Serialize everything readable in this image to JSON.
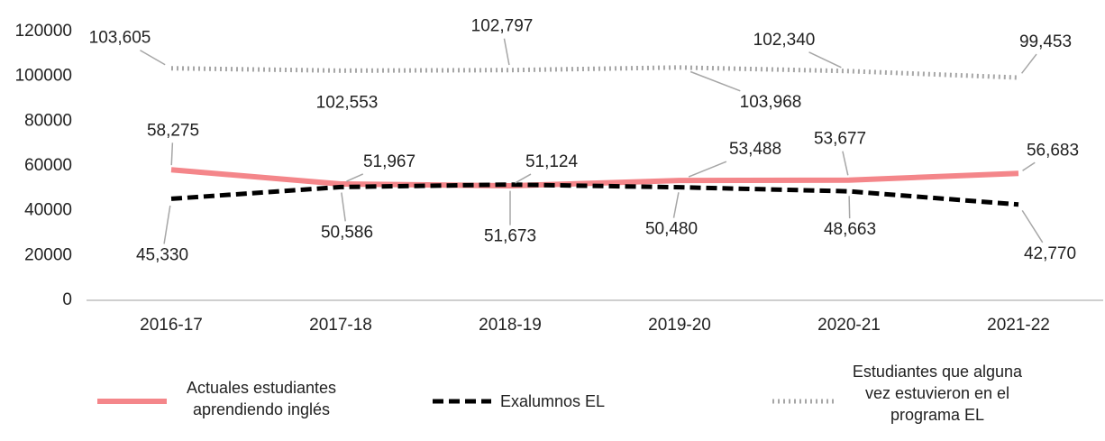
{
  "chart_data": {
    "type": "line",
    "categories": [
      "2016-17",
      "2017-18",
      "2018-19",
      "2019-20",
      "2020-21",
      "2021-22"
    ],
    "series": [
      {
        "name": "Actuales estudiantes aprendiendo inglés",
        "color": "#f4868a",
        "style": "solid",
        "values": [
          58275,
          51967,
          51124,
          53488,
          53677,
          56683
        ],
        "value_labels": [
          "58,275",
          "51,967",
          "51,124",
          "53,488",
          "53,677",
          "56,683"
        ]
      },
      {
        "name": "Exalumnos EL",
        "color": "#000000",
        "style": "dashed",
        "values": [
          45330,
          50586,
          51673,
          50480,
          48663,
          42770
        ],
        "value_labels": [
          "45,330",
          "50,586",
          "51,673",
          "50,480",
          "48,663",
          "42,770"
        ]
      },
      {
        "name": "Estudiantes que alguna vez estuvieron en el programa EL",
        "color": "#a6a6a6",
        "style": "dotted",
        "values": [
          103605,
          102553,
          102797,
          103968,
          102340,
          99453
        ],
        "value_labels": [
          "103,605",
          "102,553",
          "102,797",
          "103,968",
          "102,340",
          "99,453"
        ]
      }
    ],
    "ylim": [
      0,
      120000
    ],
    "yticks": [
      0,
      20000,
      40000,
      60000,
      80000,
      100000,
      120000
    ],
    "grid": false,
    "legend": "bottom"
  }
}
